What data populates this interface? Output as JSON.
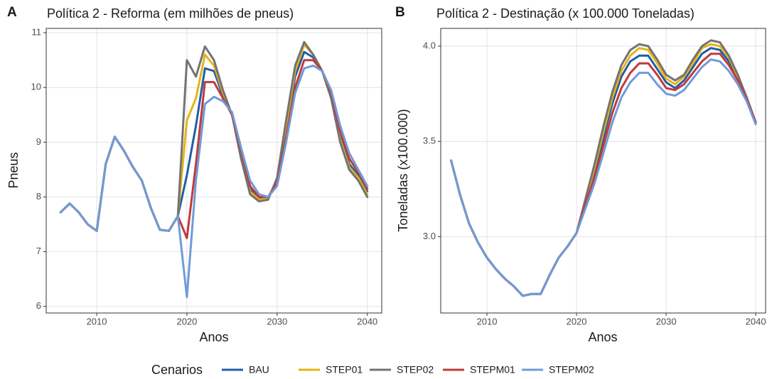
{
  "chart_data": [
    {
      "type": "line",
      "tag": "A",
      "title": "Política 2 - Reforma (em milhões de pneus)",
      "x_label": "Anos",
      "y_label": "Pneus",
      "x": [
        2006,
        2007,
        2008,
        2009,
        2010,
        2011,
        2012,
        2013,
        2014,
        2015,
        2016,
        2017,
        2018,
        2019,
        2020,
        2021,
        2022,
        2023,
        2024,
        2025,
        2026,
        2027,
        2028,
        2029,
        2030,
        2031,
        2032,
        2033,
        2034,
        2035,
        2036,
        2037,
        2038,
        2039,
        2040
      ],
      "xlim": [
        2004.4,
        2041.6
      ],
      "xticks": [
        2010,
        2020,
        2030,
        2040
      ],
      "ylim": [
        5.88,
        11.08
      ],
      "yticks": [
        6,
        7,
        8,
        9,
        10,
        11
      ],
      "grid": true,
      "series": [
        {
          "values": [
            7.72,
            7.88,
            7.72,
            7.5,
            7.38,
            8.6,
            9.1,
            8.85,
            8.55,
            8.3,
            7.8,
            7.4,
            7.38,
            7.65,
            8.4,
            9.3,
            10.35,
            10.3,
            9.85,
            9.5,
            8.8,
            8.15,
            7.98,
            7.98,
            8.3,
            9.2,
            10.2,
            10.65,
            10.55,
            10.3,
            9.85,
            9.1,
            8.6,
            8.4,
            8.1
          ]
        },
        {
          "values": [
            7.72,
            7.88,
            7.72,
            7.5,
            7.38,
            8.6,
            9.1,
            8.85,
            8.55,
            8.3,
            7.8,
            7.4,
            7.38,
            7.65,
            9.4,
            9.8,
            10.6,
            10.4,
            9.9,
            9.5,
            8.75,
            8.1,
            7.95,
            7.97,
            8.3,
            9.3,
            10.3,
            10.78,
            10.6,
            10.3,
            9.8,
            9.05,
            8.55,
            8.35,
            8.05
          ]
        },
        {
          "values": [
            7.72,
            7.88,
            7.72,
            7.5,
            7.38,
            8.6,
            9.1,
            8.85,
            8.55,
            8.3,
            7.8,
            7.4,
            7.38,
            7.65,
            10.5,
            10.2,
            10.75,
            10.5,
            9.95,
            9.5,
            8.7,
            8.05,
            7.92,
            7.95,
            8.35,
            9.4,
            10.4,
            10.83,
            10.6,
            10.3,
            9.8,
            9.0,
            8.5,
            8.3,
            8.0
          ]
        },
        {
          "values": [
            7.72,
            7.88,
            7.72,
            7.5,
            7.38,
            8.6,
            9.1,
            8.85,
            8.55,
            8.3,
            7.8,
            7.4,
            7.38,
            7.65,
            7.25,
            8.6,
            10.1,
            10.1,
            9.8,
            9.5,
            8.85,
            8.2,
            8.0,
            8.0,
            8.25,
            9.1,
            10.0,
            10.5,
            10.5,
            10.3,
            9.9,
            9.2,
            8.7,
            8.45,
            8.15
          ]
        },
        {
          "values": [
            7.72,
            7.88,
            7.72,
            7.5,
            7.38,
            8.6,
            9.1,
            8.85,
            8.55,
            8.3,
            7.8,
            7.4,
            7.38,
            7.65,
            6.17,
            8.3,
            9.7,
            9.83,
            9.75,
            9.55,
            8.9,
            8.3,
            8.05,
            8.0,
            8.2,
            9.0,
            9.9,
            10.35,
            10.4,
            10.3,
            9.95,
            9.3,
            8.8,
            8.5,
            8.2
          ]
        }
      ]
    },
    {
      "type": "line",
      "tag": "B",
      "title": "Política 2 - Destinação (x 100.000 Toneladas)",
      "x_label": "Anos",
      "y_label": "Toneladas (x100.000)",
      "x": [
        2006,
        2007,
        2008,
        2009,
        2010,
        2011,
        2012,
        2013,
        2014,
        2015,
        2016,
        2017,
        2018,
        2019,
        2020,
        2021,
        2022,
        2023,
        2024,
        2025,
        2026,
        2027,
        2028,
        2029,
        2030,
        2031,
        2032,
        2033,
        2034,
        2035,
        2036,
        2037,
        2038,
        2039,
        2040
      ],
      "xlim": [
        2004.84,
        2041.1
      ],
      "xticks": [
        2010,
        2020,
        2030,
        2040
      ],
      "ylim": [
        2.6,
        4.093
      ],
      "yticks": [
        {
          "value": 3,
          "label": "3.0"
        },
        {
          "value": 3.5,
          "label": "3.5"
        },
        {
          "value": 4,
          "label": "4.0"
        }
      ],
      "grid": true,
      "series": [
        {
          "values": [
            3.4,
            3.22,
            3.07,
            2.97,
            2.89,
            2.83,
            2.78,
            2.74,
            2.69,
            2.7,
            2.7,
            2.8,
            2.89,
            2.95,
            3.02,
            3.18,
            3.34,
            3.52,
            3.7,
            3.84,
            3.92,
            3.95,
            3.95,
            3.88,
            3.81,
            3.78,
            3.82,
            3.89,
            3.96,
            3.99,
            3.98,
            3.92,
            3.83,
            3.72,
            3.6
          ]
        },
        {
          "values": [
            3.4,
            3.22,
            3.07,
            2.97,
            2.89,
            2.83,
            2.78,
            2.74,
            2.69,
            2.7,
            2.7,
            2.8,
            2.89,
            2.95,
            3.02,
            3.19,
            3.36,
            3.55,
            3.73,
            3.87,
            3.95,
            3.99,
            3.98,
            3.91,
            3.83,
            3.8,
            3.84,
            3.91,
            3.99,
            4.01,
            4.0,
            3.94,
            3.84,
            3.73,
            3.6
          ]
        },
        {
          "values": [
            3.4,
            3.22,
            3.07,
            2.97,
            2.89,
            2.83,
            2.78,
            2.74,
            2.69,
            2.7,
            2.7,
            2.8,
            2.89,
            2.95,
            3.02,
            3.2,
            3.38,
            3.58,
            3.76,
            3.9,
            3.98,
            4.01,
            4.0,
            3.93,
            3.85,
            3.82,
            3.85,
            3.93,
            4.0,
            4.03,
            4.02,
            3.95,
            3.85,
            3.73,
            3.6
          ]
        },
        {
          "values": [
            3.4,
            3.22,
            3.07,
            2.97,
            2.89,
            2.83,
            2.78,
            2.74,
            2.69,
            2.7,
            2.7,
            2.8,
            2.89,
            2.95,
            3.02,
            3.17,
            3.31,
            3.48,
            3.65,
            3.78,
            3.86,
            3.91,
            3.91,
            3.85,
            3.78,
            3.77,
            3.8,
            3.86,
            3.92,
            3.96,
            3.96,
            3.9,
            3.82,
            3.72,
            3.6
          ]
        },
        {
          "values": [
            3.4,
            3.22,
            3.07,
            2.97,
            2.89,
            2.83,
            2.78,
            2.74,
            2.69,
            2.7,
            2.7,
            2.8,
            2.89,
            2.95,
            3.02,
            3.15,
            3.28,
            3.44,
            3.6,
            3.73,
            3.81,
            3.86,
            3.86,
            3.8,
            3.75,
            3.74,
            3.77,
            3.83,
            3.89,
            3.93,
            3.92,
            3.87,
            3.8,
            3.71,
            3.59
          ]
        }
      ]
    }
  ],
  "legend": {
    "title": "Cenarios",
    "series": [
      {
        "name": "BAU",
        "color": "#1f5ea8"
      },
      {
        "name": "STEP01",
        "color": "#e6b415"
      },
      {
        "name": "STEP02",
        "color": "#737373"
      },
      {
        "name": "STEPM01",
        "color": "#c2393a"
      },
      {
        "name": "STEPM02",
        "color": "#6f9bd8"
      }
    ]
  }
}
